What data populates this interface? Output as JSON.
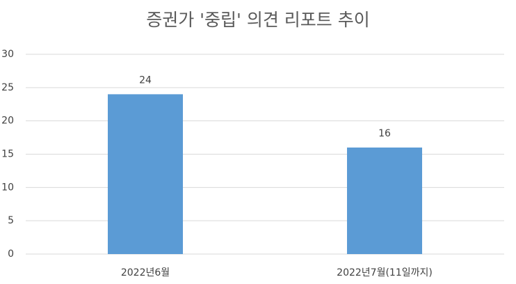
{
  "chart_data": {
    "type": "bar",
    "title": "증권가 '중립' 의견 리포트 추이",
    "categories": [
      "2022년6월",
      "2022년7월(11일까지)"
    ],
    "values": [
      24,
      16
    ],
    "color": "#5b9bd5",
    "ylim": [
      0,
      30
    ],
    "yticks": [
      0,
      5,
      10,
      15,
      20,
      25,
      30
    ],
    "grid": true
  }
}
